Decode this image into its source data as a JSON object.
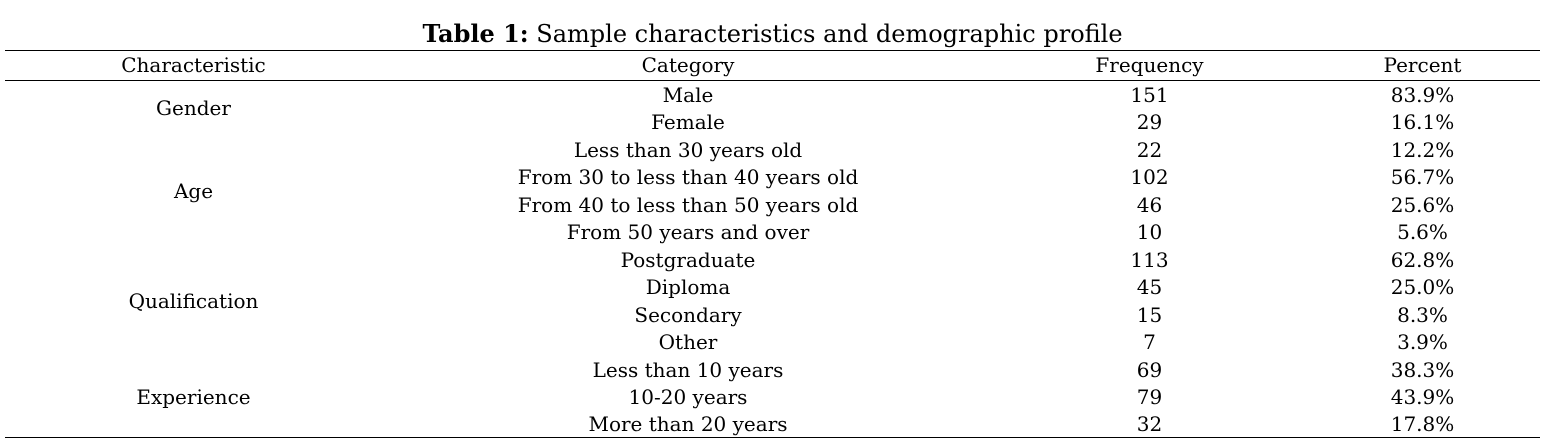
{
  "table": {
    "caption_label": "Table 1:",
    "caption_text": " Sample characteristics and demographic profile",
    "headers": [
      "Characteristic",
      "Category",
      "Frequency",
      "Percent"
    ],
    "groups": [
      {
        "characteristic": "Gender",
        "rows": [
          {
            "category": "Male",
            "frequency": "151",
            "percent": "83.9%"
          },
          {
            "category": "Female",
            "frequency": "29",
            "percent": "16.1%"
          }
        ]
      },
      {
        "characteristic": "Age",
        "rows": [
          {
            "category": "Less than 30 years old",
            "frequency": "22",
            "percent": "12.2%"
          },
          {
            "category": "From 30 to less than 40 years old",
            "frequency": "102",
            "percent": "56.7%"
          },
          {
            "category": "From 40 to less than 50 years old",
            "frequency": "46",
            "percent": "25.6%"
          },
          {
            "category": "From 50 years and over",
            "frequency": "10",
            "percent": "5.6%"
          }
        ]
      },
      {
        "characteristic": "Qualification",
        "rows": [
          {
            "category": "Postgraduate",
            "frequency": "113",
            "percent": "62.8%"
          },
          {
            "category": "Diploma",
            "frequency": "45",
            "percent": "25.0%"
          },
          {
            "category": "Secondary",
            "frequency": "15",
            "percent": "8.3%"
          },
          {
            "category": "Other",
            "frequency": "7",
            "percent": "3.9%"
          }
        ]
      },
      {
        "characteristic": "Experience",
        "rows": [
          {
            "category": "Less than 10 years",
            "frequency": "69",
            "percent": "38.3%"
          },
          {
            "category": "10-20 years",
            "frequency": "79",
            "percent": "43.9%"
          },
          {
            "category": "More than 20 years",
            "frequency": "32",
            "percent": "17.8%"
          }
        ]
      }
    ]
  }
}
